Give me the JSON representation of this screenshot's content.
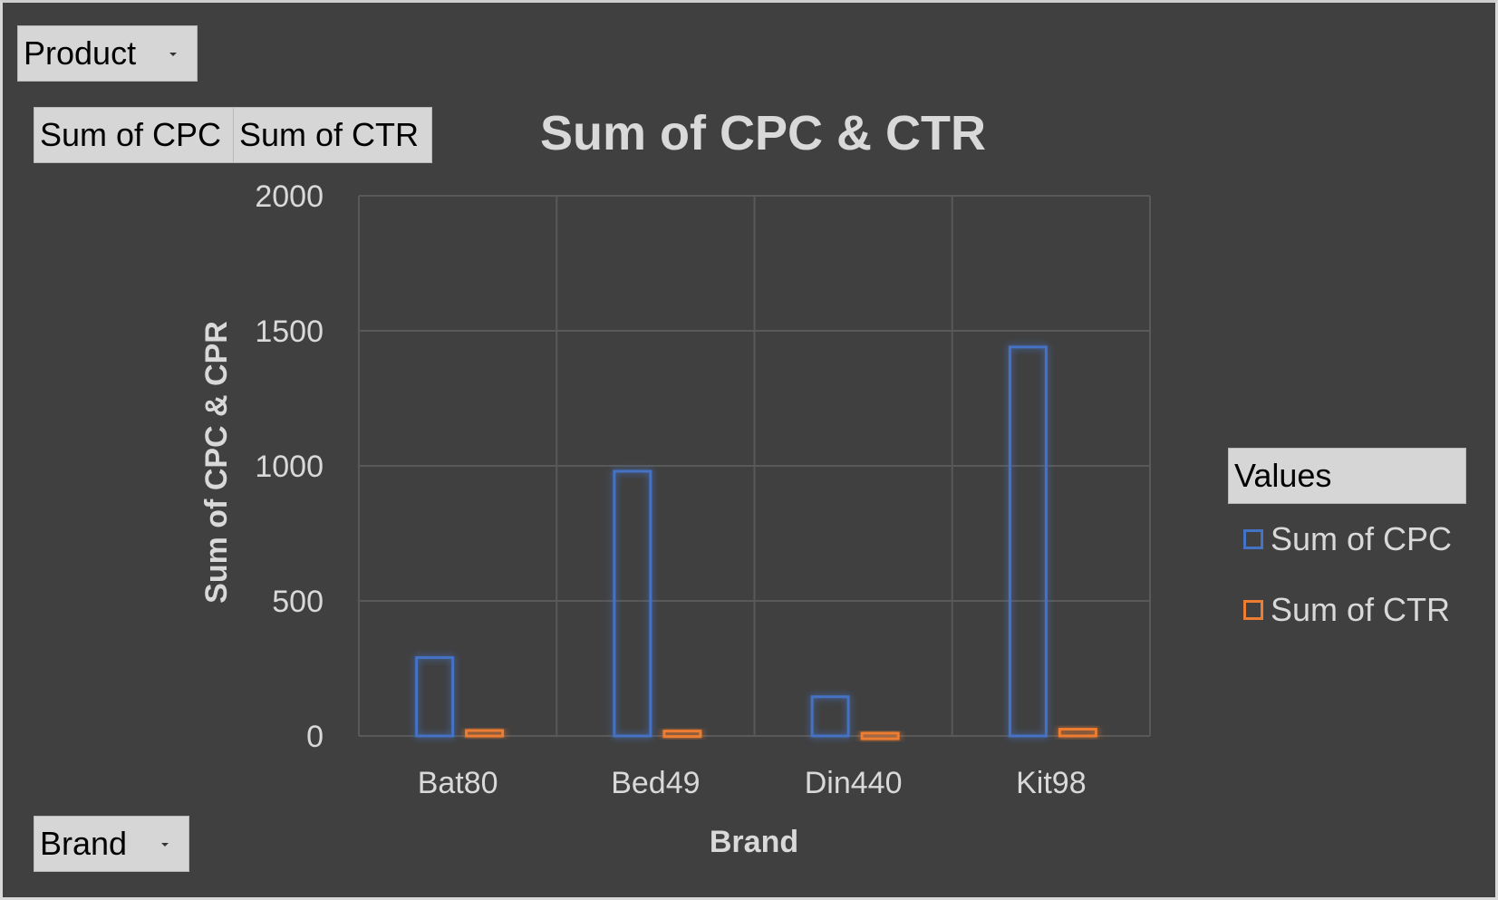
{
  "filters": {
    "product_label": "Product",
    "brand_label": "Brand",
    "value_fields": [
      "Sum of CPC",
      "Sum of CTR"
    ]
  },
  "legend": {
    "header": "Values"
  },
  "colors": {
    "background": "#404040",
    "cpc": "#4472C4",
    "ctr": "#ED7D31",
    "grid": "#595959",
    "text": "#d9d9d9"
  },
  "chart_data": {
    "type": "bar",
    "title": "Sum of CPC & CTR",
    "xlabel": "Brand",
    "ylabel": "Sum of CPC & CPR",
    "categories": [
      "Bat80",
      "Bed49",
      "Din440",
      "Kit98"
    ],
    "series": [
      {
        "name": "Sum of CPC",
        "values": [
          290,
          980,
          145,
          1440
        ]
      },
      {
        "name": "Sum of CTR",
        "values": [
          20,
          18,
          10,
          25
        ]
      }
    ],
    "ylim": [
      0,
      2000
    ],
    "yticks": [
      0,
      500,
      1000,
      1500,
      2000
    ],
    "grid": true,
    "legend_position": "right"
  }
}
